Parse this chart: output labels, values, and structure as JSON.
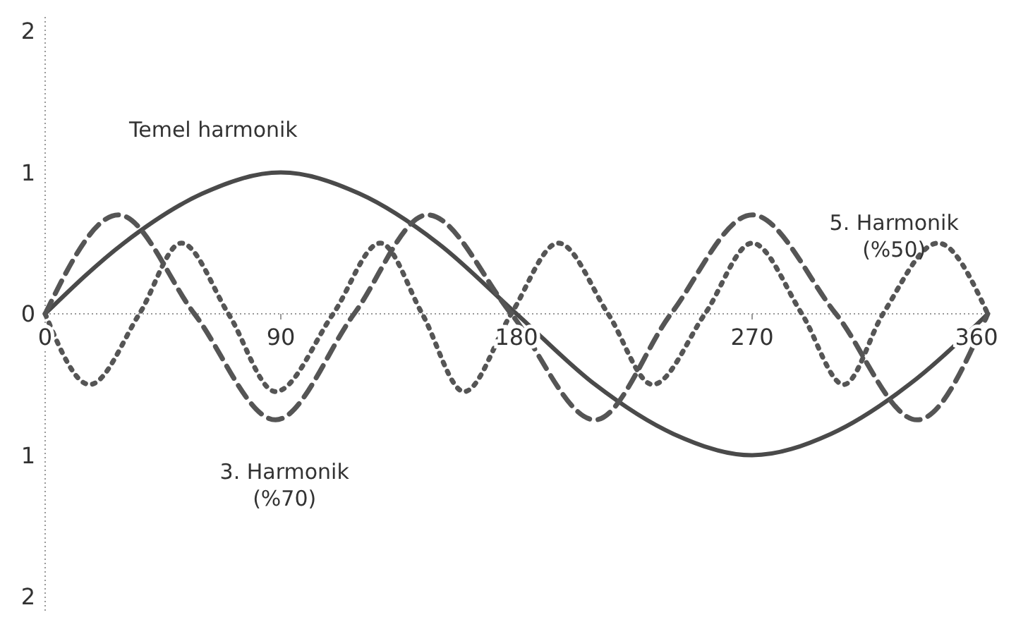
{
  "chart_data": {
    "type": "line",
    "xlim": [
      0,
      360
    ],
    "xticks": [
      0,
      90,
      180,
      270,
      360
    ],
    "ylim": [
      -2.1,
      2.1
    ],
    "yticks": [
      2,
      1,
      0,
      {
        "value": -1,
        "label": "1"
      },
      {
        "value": -2,
        "label": "2"
      }
    ],
    "marker": "none",
    "series": [
      {
        "color": "#4a4a4a",
        "line_style": "solid",
        "x": [
          0,
          30,
          60,
          90,
          120,
          150,
          180,
          210,
          240,
          270,
          300,
          330,
          360
        ],
        "values": [
          0,
          0.5,
          0.85,
          1,
          0.85,
          0.5,
          0,
          -0.5,
          -0.85,
          -1,
          -0.85,
          -0.5,
          0
        ]
      },
      {
        "color": "#555555",
        "line_style": "dashed",
        "x": [
          0,
          28,
          57,
          88,
          118,
          146,
          178,
          210,
          239,
          270,
          302,
          333,
          360
        ],
        "values": [
          0,
          0.7,
          0,
          -0.75,
          0,
          0.7,
          0,
          -0.75,
          0,
          0.7,
          0,
          -0.75,
          0
        ]
      },
      {
        "color": "#555555",
        "line_style": "dotted",
        "x": [
          0,
          17,
          36,
          52,
          70,
          88,
          110,
          128,
          144,
          160,
          178,
          196,
          215,
          232,
          252,
          270,
          289,
          305,
          320,
          341,
          360
        ],
        "values": [
          0,
          -0.5,
          0,
          0.5,
          0,
          -0.55,
          0,
          0.5,
          0,
          -0.55,
          0,
          0.5,
          0,
          -0.5,
          0,
          0.5,
          0,
          -0.5,
          0,
          0.5,
          0
        ]
      }
    ],
    "annotations": [
      "Temel harmonik",
      "3. Harmonik\n(%70)",
      "5. Harmonik\n(%50)"
    ]
  }
}
